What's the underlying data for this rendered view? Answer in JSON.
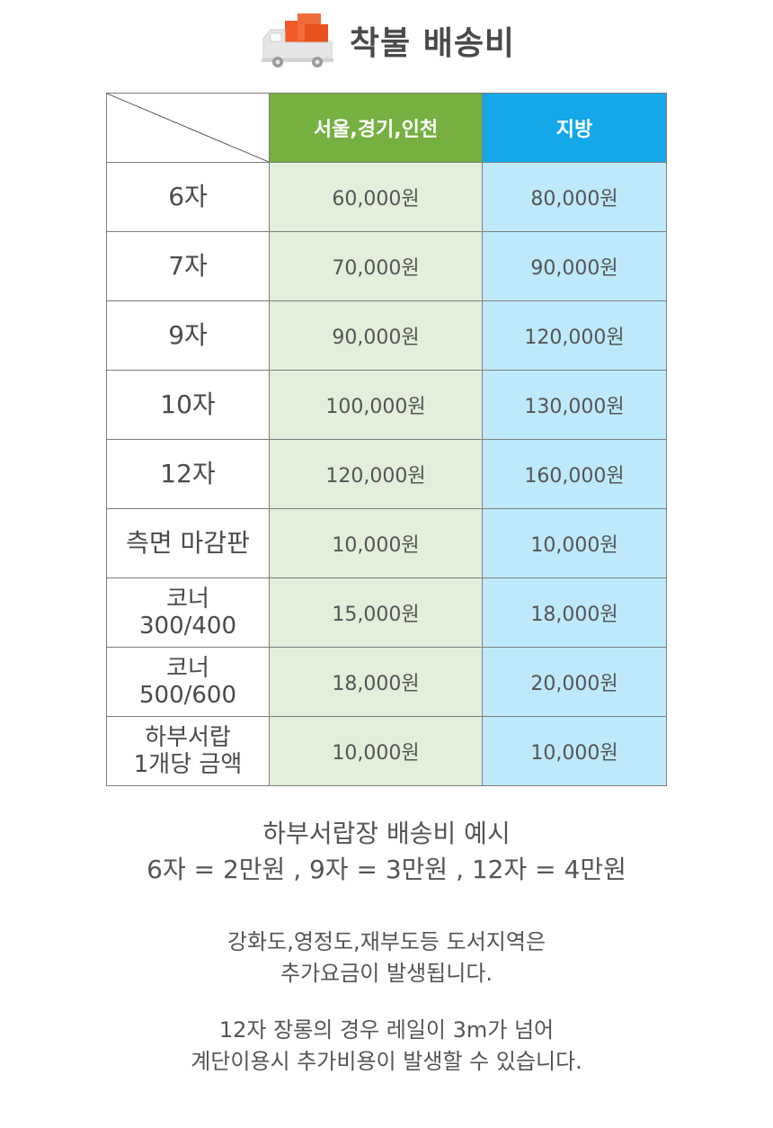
{
  "header": {
    "title": "착불 배송비",
    "icon": "truck-icon",
    "colors": {
      "truck_body": "#e0e0e0",
      "box": "#f05a28"
    }
  },
  "table": {
    "columns": [
      "서울,경기,인천",
      "지방"
    ],
    "column_colors": {
      "seoul_header": "#76b041",
      "local_header": "#14a8eb",
      "seoul_cells": "#e2efda",
      "local_cells": "#bde9fb"
    },
    "rows": [
      {
        "label_lines": [
          "6자"
        ],
        "seoul": "60,000원",
        "local": "80,000원"
      },
      {
        "label_lines": [
          "7자"
        ],
        "seoul": "70,000원",
        "local": "90,000원"
      },
      {
        "label_lines": [
          "9자"
        ],
        "seoul": "90,000원",
        "local": "120,000원"
      },
      {
        "label_lines": [
          "10자"
        ],
        "seoul": "100,000원",
        "local": "130,000원"
      },
      {
        "label_lines": [
          "12자"
        ],
        "seoul": "120,000원",
        "local": "160,000원"
      },
      {
        "label_lines": [
          "측면 마감판"
        ],
        "seoul": "10,000원",
        "local": "10,000원"
      },
      {
        "label_lines": [
          "코너",
          "300/400"
        ],
        "seoul": "15,000원",
        "local": "18,000원"
      },
      {
        "label_lines": [
          "코너",
          "500/600"
        ],
        "seoul": "18,000원",
        "local": "20,000원"
      },
      {
        "label_lines": [
          "하부서랍",
          "1개당 금액"
        ],
        "seoul": "10,000원",
        "local": "10,000원"
      }
    ]
  },
  "notes": {
    "example_lines": [
      "하부서랍장 배송비 예시",
      "6자 = 2만원 , 9자 = 3만원 , 12자 = 4만원"
    ],
    "island_lines": [
      "강화도,영정도,재부도등 도서지역은",
      "추가요금이 발생됩니다."
    ],
    "rail_lines": [
      "12자 장롱의 경우 레일이 3m가 넘어",
      "계단이용시 추가비용이 발생할 수 있습니다."
    ]
  }
}
